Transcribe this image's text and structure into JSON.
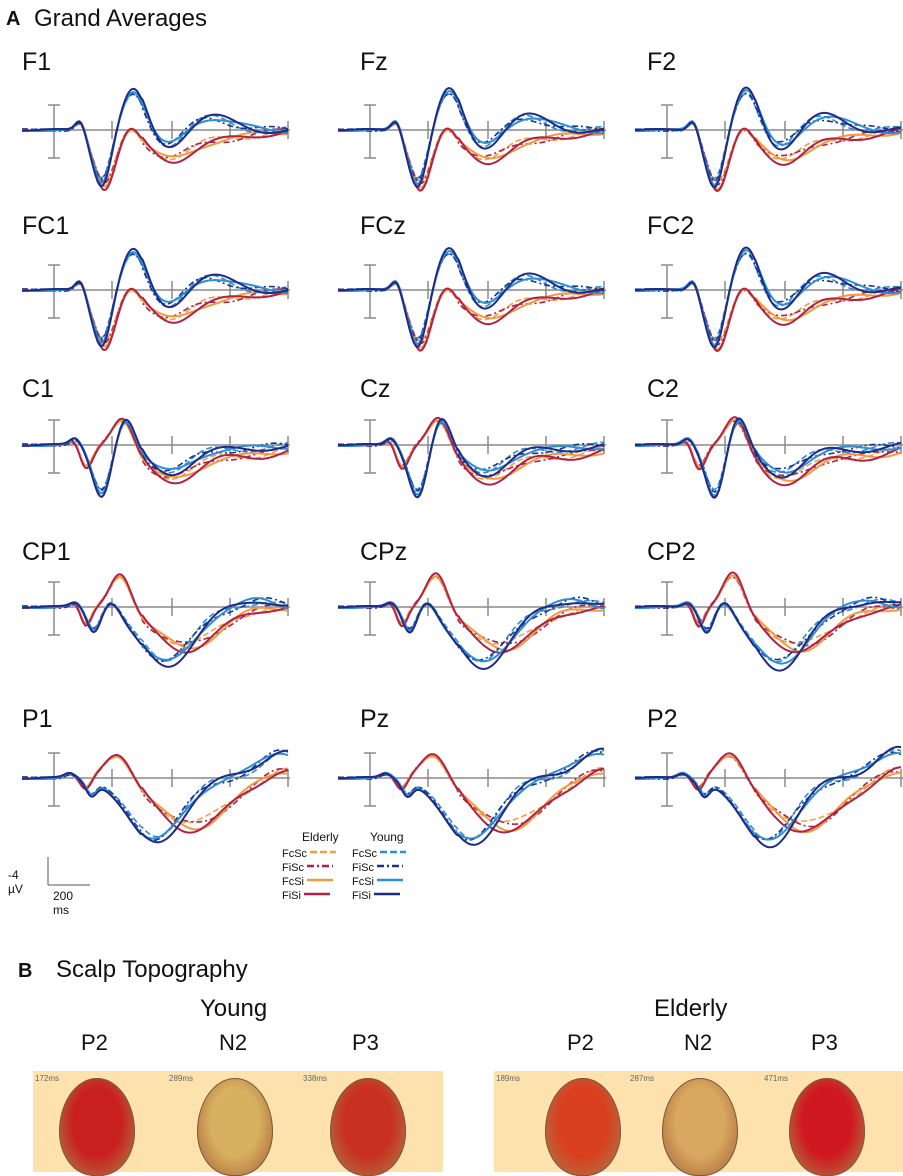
{
  "panel_a": {
    "letter": "A",
    "title": "Grand Averages"
  },
  "panel_b": {
    "letter": "B",
    "title": "Scalp Topography"
  },
  "colors": {
    "elderly_FcSc": "#f0a040",
    "elderly_FiSc": "#b01f45",
    "elderly_FcSi": "#f29a3e",
    "elderly_FiSi": "#b02248",
    "young_FcSc": "#2b8fd6",
    "young_FiSc": "#1f2f8a",
    "young_FcSi": "#2c8fd4",
    "young_FiSi": "#1f2b86",
    "axis": "#8a8a8a"
  },
  "legend": {
    "elderly_title": "Elderly",
    "young_title": "Young",
    "elderly_items": [
      "FcSc",
      "FiSc",
      "FcSi",
      "FiSi"
    ],
    "young_items": [
      "FcSc",
      "FiSc",
      "FcSi",
      "FiSi"
    ]
  },
  "scale_bar": {
    "amplitude": "-4 µV",
    "time": "200 ms"
  },
  "chart_data": {
    "type": "line",
    "electrodes": [
      "F1",
      "Fz",
      "F2",
      "FC1",
      "FCz",
      "FC2",
      "C1",
      "Cz",
      "C2",
      "CP1",
      "CPz",
      "CP2",
      "P1",
      "Pz",
      "P2"
    ],
    "series": [
      {
        "group": "Elderly",
        "name": "FcSc",
        "dashed": true
      },
      {
        "group": "Elderly",
        "name": "FiSc",
        "dashed": true
      },
      {
        "group": "Elderly",
        "name": "FcSi",
        "dashed": false
      },
      {
        "group": "Elderly",
        "name": "FiSi",
        "dashed": false
      },
      {
        "group": "Young",
        "name": "FcSc",
        "dashed": true
      },
      {
        "group": "Young",
        "name": "FiSc",
        "dashed": true
      },
      {
        "group": "Young",
        "name": "FcSi",
        "dashed": false
      },
      {
        "group": "Young",
        "name": "FiSi",
        "dashed": false
      }
    ],
    "scale": {
      "amplitude_uV": -4,
      "time_ms": 200
    }
  },
  "topography": {
    "young": {
      "title": "Young",
      "components": [
        {
          "label": "P2",
          "time": "172ms",
          "fill": "#c82020"
        },
        {
          "label": "N2",
          "time": "289ms",
          "fill": "#d8b060"
        },
        {
          "label": "P3",
          "time": "338ms",
          "fill": "#c83020"
        }
      ]
    },
    "elderly": {
      "title": "Elderly",
      "components": [
        {
          "label": "P2",
          "time": "189ms",
          "fill": "#d84020"
        },
        {
          "label": "N2",
          "time": "287ms",
          "fill": "#d8a860"
        },
        {
          "label": "P3",
          "time": "471ms",
          "fill": "#d01820"
        }
      ]
    }
  }
}
